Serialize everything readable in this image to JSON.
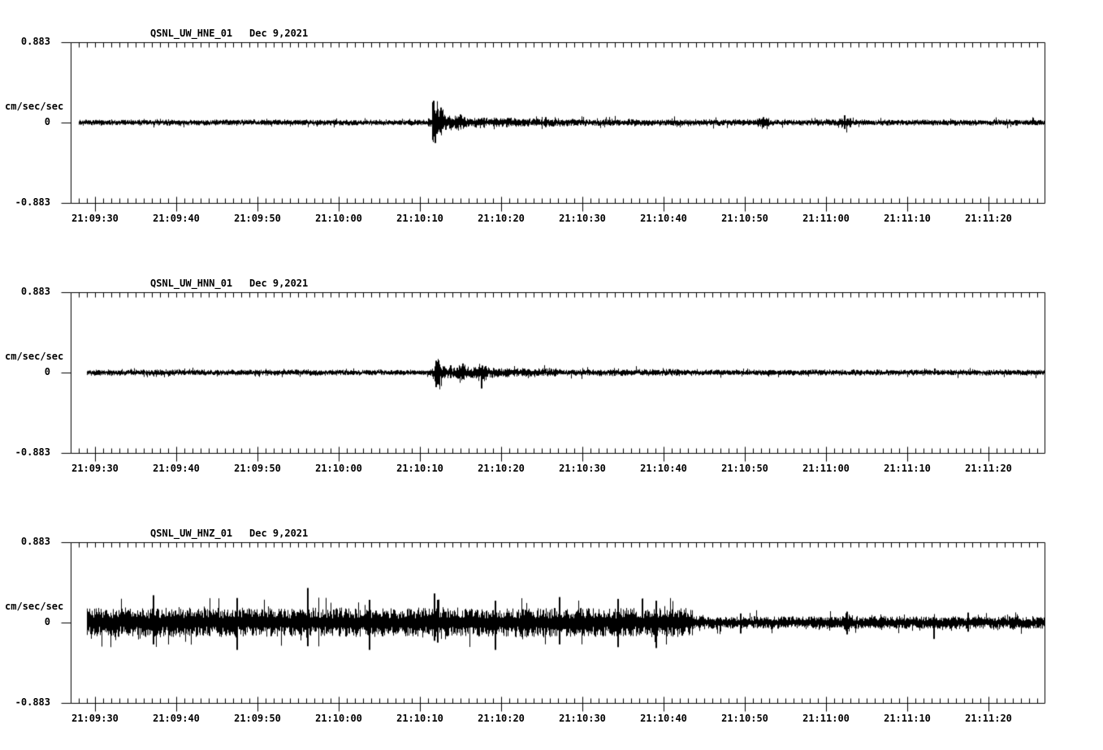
{
  "colors": {
    "background": "#ffffff",
    "ink": "#000000"
  },
  "time_axis": {
    "axis_start_time": "21:09:27",
    "span_seconds": 120,
    "major_tick_interval_seconds": 10,
    "minor_tick_interval_seconds": 1,
    "tick_labels": [
      "21:09:30",
      "21:09:40",
      "21:09:50",
      "21:10:00",
      "21:10:10",
      "21:10:20",
      "21:10:30",
      "21:10:40",
      "21:10:50",
      "21:11:00",
      "21:11:10",
      "21:11:20"
    ]
  },
  "chart_data": [
    {
      "type": "line",
      "station_channel": "QSNL_UW_HNE_01",
      "date": "Dec 9,2021",
      "ylabel": "cm/sec/sec",
      "y_tick_labels": [
        "0.883",
        "0",
        "-0.883"
      ],
      "ylim": [
        -0.883,
        0.883
      ],
      "x_tick_labels": [
        "21:09:30",
        "21:09:40",
        "21:09:50",
        "21:10:00",
        "21:10:10",
        "21:10:20",
        "21:10:30",
        "21:10:40",
        "21:10:50",
        "21:11:00",
        "21:11:10",
        "21:11:20"
      ],
      "trace": {
        "units": "cm/sec/sec",
        "t_is_seconds_after": "21:09:27",
        "baseline_amp": 0.03,
        "start_s": 1.0,
        "end_s": 119.9,
        "seed": 101,
        "envelope": [
          [
            1,
            44,
            0.03
          ],
          [
            44,
            44.5,
            0.055
          ],
          [
            44.5,
            45.2,
            0.235
          ],
          [
            45.2,
            45.9,
            0.15
          ],
          [
            45.9,
            47.0,
            0.085
          ],
          [
            47.0,
            48.5,
            0.075
          ],
          [
            48.5,
            51.0,
            0.06
          ],
          [
            51.0,
            55.0,
            0.05
          ],
          [
            55.0,
            62.0,
            0.042
          ],
          [
            62.0,
            80.0,
            0.035
          ],
          [
            80.0,
            84.5,
            0.032
          ],
          [
            84.5,
            86.0,
            0.048
          ],
          [
            86.0,
            94.5,
            0.032
          ],
          [
            94.5,
            96.2,
            0.055
          ],
          [
            96.2,
            119.9,
            0.03
          ]
        ],
        "spikes": [
          [
            44.7,
            0.24,
            0.06
          ],
          [
            44.9,
            0.1,
            0.225
          ],
          [
            45.6,
            0.165,
            0.08
          ],
          [
            48.0,
            0.09,
            0.05
          ],
          [
            58.5,
            0.06,
            0.05
          ],
          [
            85.3,
            0.06,
            0.05
          ],
          [
            95.3,
            0.08,
            0.07
          ]
        ]
      }
    },
    {
      "type": "line",
      "station_channel": "QSNL_UW_HNN_01",
      "date": "Dec 9,2021",
      "ylabel": "cm/sec/sec",
      "y_tick_labels": [
        "0.883",
        "0",
        "-0.883"
      ],
      "ylim": [
        -0.883,
        0.883
      ],
      "x_tick_labels": [
        "21:09:30",
        "21:09:40",
        "21:09:50",
        "21:10:00",
        "21:10:10",
        "21:10:20",
        "21:10:30",
        "21:10:40",
        "21:10:50",
        "21:11:00",
        "21:11:10",
        "21:11:20"
      ],
      "trace": {
        "units": "cm/sec/sec",
        "t_is_seconds_after": "21:09:27",
        "baseline_amp": 0.03,
        "start_s": 2.0,
        "end_s": 119.9,
        "seed": 202,
        "envelope": [
          [
            2,
            44.3,
            0.03
          ],
          [
            44.3,
            44.8,
            0.05
          ],
          [
            44.8,
            45.5,
            0.15
          ],
          [
            45.5,
            46.2,
            0.08
          ],
          [
            46.2,
            47.5,
            0.06
          ],
          [
            47.5,
            48.7,
            0.085
          ],
          [
            48.7,
            50.2,
            0.065
          ],
          [
            50.2,
            51.2,
            0.095
          ],
          [
            51.2,
            54.0,
            0.055
          ],
          [
            54.0,
            60.0,
            0.045
          ],
          [
            60.0,
            75.0,
            0.035
          ],
          [
            75.0,
            119.9,
            0.03
          ]
        ],
        "spikes": [
          [
            44.95,
            0.13,
            0.16
          ],
          [
            45.3,
            0.11,
            0.08
          ],
          [
            46.8,
            0.08,
            0.06
          ],
          [
            48.3,
            0.1,
            0.07
          ],
          [
            50.6,
            0.05,
            0.175
          ]
        ]
      }
    },
    {
      "type": "line",
      "station_channel": "QSNL_UW_HNZ_01",
      "date": "Dec 9,2021",
      "ylabel": "cm/sec/sec",
      "y_tick_labels": [
        "0.883",
        "0",
        "-0.883"
      ],
      "ylim": [
        -0.883,
        0.883
      ],
      "x_tick_labels": [
        "21:09:30",
        "21:09:40",
        "21:09:50",
        "21:10:00",
        "21:10:10",
        "21:10:20",
        "21:10:30",
        "21:10:40",
        "21:10:50",
        "21:11:00",
        "21:11:10",
        "21:11:20"
      ],
      "trace": {
        "units": "cm/sec/sec",
        "t_is_seconds_after": "21:09:27",
        "baseline_amp": 0.068,
        "start_s": 2.0,
        "end_s": 119.9,
        "seed": 303,
        "envelope": [
          [
            2,
            44.0,
            0.16
          ],
          [
            44.0,
            46.0,
            0.185
          ],
          [
            46.0,
            76.6,
            0.16
          ],
          [
            76.6,
            95.3,
            0.068
          ],
          [
            95.3,
            96.3,
            0.1
          ],
          [
            96.3,
            119.9,
            0.068
          ]
        ],
        "spikes": [
          [
            10.2,
            0.3,
            0.24
          ],
          [
            20.5,
            0.27,
            0.3
          ],
          [
            29.15,
            0.38,
            0.26
          ],
          [
            36.8,
            0.25,
            0.3
          ],
          [
            44.75,
            0.32,
            0.2
          ],
          [
            45.15,
            0.25,
            0.22
          ],
          [
            52.3,
            0.24,
            0.3
          ],
          [
            60.2,
            0.28,
            0.24
          ],
          [
            67.4,
            0.26,
            0.27
          ],
          [
            72.1,
            0.24,
            0.28
          ],
          [
            82.5,
            0.1,
            0.12
          ],
          [
            95.6,
            0.12,
            0.13
          ],
          [
            106.3,
            0.06,
            0.18
          ],
          [
            110.5,
            0.11,
            0.1
          ]
        ]
      }
    }
  ]
}
